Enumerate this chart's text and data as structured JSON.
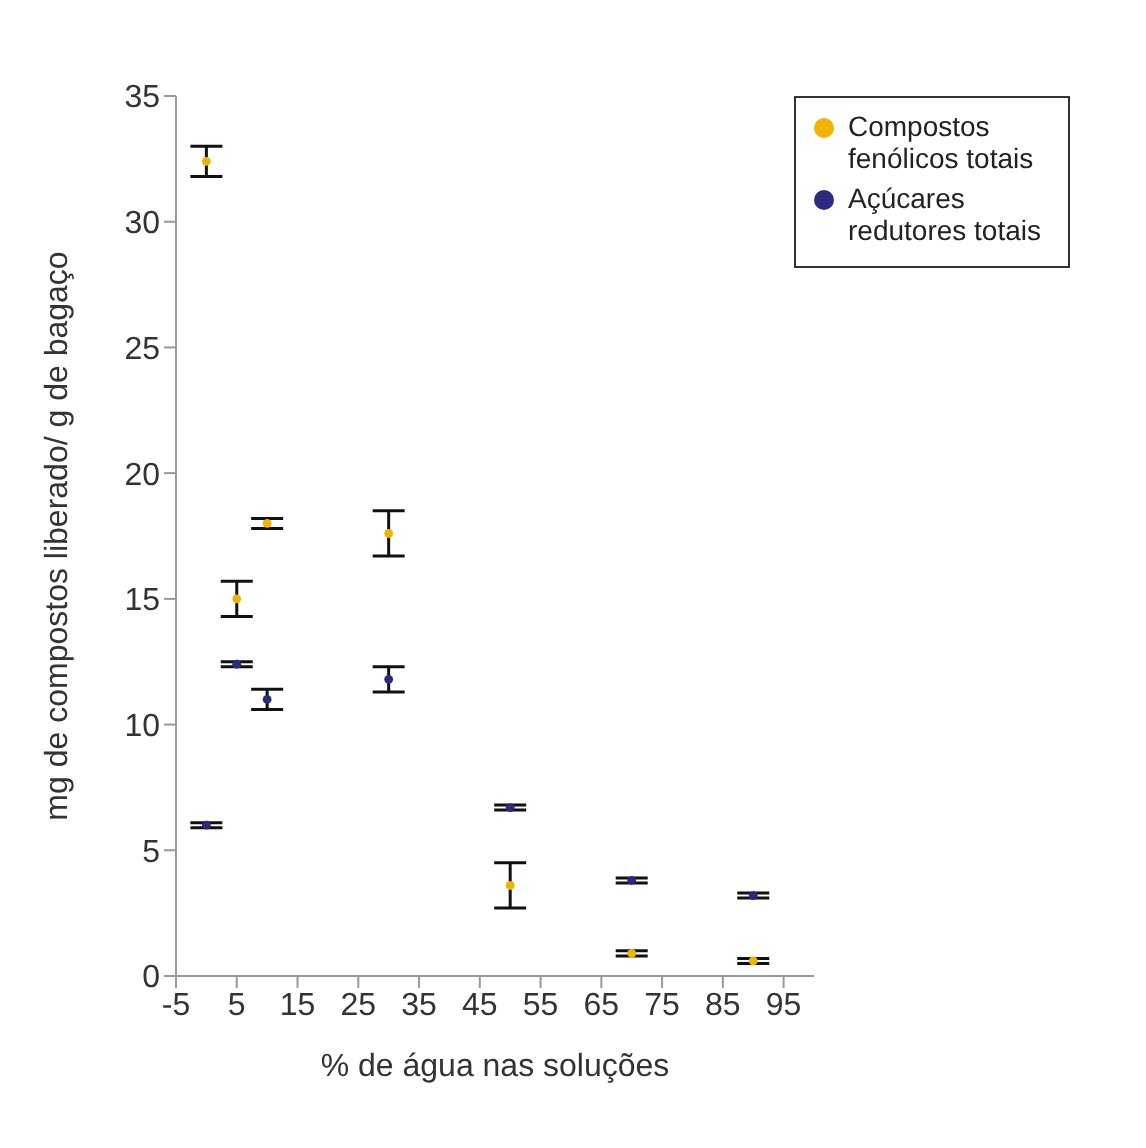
{
  "chart_data": {
    "type": "scatter",
    "xlabel": "% de água nas soluções",
    "ylabel": "mg de compostos liberado/ g de bagaço",
    "x": [
      0,
      5,
      10,
      30,
      50,
      70,
      90
    ],
    "series": [
      {
        "name": "Compostos fenólicos totais",
        "color": "#f0b400",
        "values": [
          32.4,
          15.0,
          18.0,
          17.6,
          3.6,
          0.9,
          0.6
        ],
        "errors": [
          0.6,
          0.7,
          0.2,
          0.9,
          0.9,
          0.1,
          0.1
        ]
      },
      {
        "name": "Açúcares redutores totais",
        "color": "#2a2a80",
        "values": [
          6.0,
          12.4,
          11.0,
          11.8,
          6.7,
          3.8,
          3.2
        ],
        "errors": [
          0.1,
          0.1,
          0.4,
          0.5,
          0.1,
          0.1,
          0.1
        ]
      }
    ],
    "xlim": [
      -5,
      100
    ],
    "xticks": [
      -5,
      5,
      15,
      25,
      35,
      45,
      55,
      65,
      75,
      85,
      95
    ],
    "ylim": [
      0,
      35
    ],
    "yticks": [
      0,
      5,
      10,
      15,
      20,
      25,
      30,
      35
    ],
    "grid": false,
    "legend": "top right",
    "marker": "circle"
  }
}
